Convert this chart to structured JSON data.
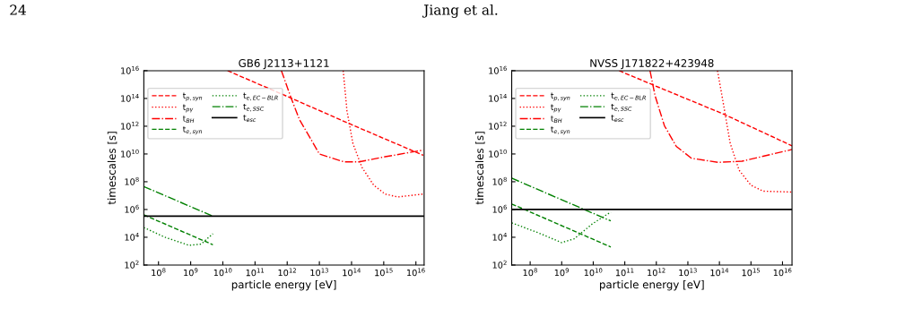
{
  "chart_data": [
    {
      "type": "line",
      "title": "GB6 J2113+1121",
      "xlabel": "particle energy [eV]",
      "ylabel": "timescales [s]",
      "log": "xy",
      "grid": false,
      "legend": "top left",
      "annotations": [
        "24",
        "Jiang et al."
      ],
      "xlim": [
        35000000.0,
        1.8e+16
      ],
      "ylim": [
        100.0,
        1e+16
      ],
      "xticks": [
        {
          "value": 100000000.0,
          "label": "10$^{8}$"
        },
        {
          "value": 1000000000.0,
          "label": "10$^{9}$"
        },
        {
          "value": 10000000000.0,
          "label": "10$^{10}$"
        },
        {
          "value": 100000000000.0,
          "label": "10$^{11}$"
        },
        {
          "value": 1000000000000.0,
          "label": "10$^{12}$"
        },
        {
          "value": 10000000000000.0,
          "label": "10$^{13}$"
        },
        {
          "value": 100000000000000.0,
          "label": "10$^{14}$"
        },
        {
          "value": 1000000000000000.0,
          "label": "10$^{15}$"
        },
        {
          "value": 1e+16,
          "label": "10$^{16}$"
        }
      ],
      "yticks": [
        {
          "value": 100.0,
          "label": "10$^{2}$"
        },
        {
          "value": 10000.0,
          "label": "10$^{4}$"
        },
        {
          "value": 1000000.0,
          "label": "10$^{6}$"
        },
        {
          "value": 100000000.0,
          "label": "10$^{8}$"
        },
        {
          "value": 10000000000.0,
          "label": "10$^{10}$"
        },
        {
          "value": 1000000000000.0,
          "label": "10$^{12}$"
        },
        {
          "value": 100000000000000.0,
          "label": "10$^{14}$"
        },
        {
          "value": 1e+16,
          "label": "10$^{16}$"
        }
      ],
      "series": [
        {
          "name": "t$_{p,syn}$",
          "color": "#ff0000",
          "line_style": "dashed",
          "x": [
            14000000000.0,
            1000000000000.0,
            100000000000000.0,
            1.7e+16
          ],
          "values": [
            1e+16,
            140000000000000.0,
            1300000000000.0,
            8000000000.0
          ]
        },
        {
          "name": "t$_{pγ}$",
          "color": "#ff0000",
          "line_style": "dotted",
          "x": [
            55000000000000.0,
            72000000000000.0,
            110000000000000.0,
            210000000000000.0,
            490000000000000.0,
            1100000000000000.0,
            2700000000000000.0,
            1.7e+16
          ],
          "values": [
            1e+16,
            13000000000000.0,
            58000000000.0,
            1100000000.0,
            56000000.0,
            13000000.0,
            8000000.0,
            13000000.0
          ]
        },
        {
          "name": "t$_{BH}$",
          "color": "#ff0000",
          "line_style": "dashdot",
          "x": [
            660000000000.0,
            1300000000000.0,
            2400000000000.0,
            4500000000000.0,
            10000000000000.0,
            58000000000000.0,
            170000000000000.0,
            1100000000000000.0,
            1.7e+16
          ],
          "values": [
            1e+16,
            120000000000000.0,
            3000000000000.0,
            250000000000.0,
            10000000000.0,
            2700000000.0,
            2700000000.0,
            6300000000.0,
            19000000000.0
          ]
        },
        {
          "name": "t$_{e,syn}$",
          "color": "#008000",
          "line_style": "dashed",
          "x": [
            35000000.0,
            4900000000.0
          ],
          "values": [
            410000.0,
            2900.0
          ]
        },
        {
          "name": "t$_{e,EC−BLR}$",
          "color": "#008000",
          "line_style": "dotted",
          "x": [
            35000000.0,
            160000000.0,
            890000000.0,
            2100000000.0,
            4900000000.0
          ],
          "values": [
            50000.0,
            10000.0,
            2600.0,
            3200.0,
            18000.0
          ]
        },
        {
          "name": "t$_{e,SSC}$",
          "color": "#008000",
          "line_style": "dashdot",
          "x": [
            35000000.0,
            4900000000.0
          ],
          "values": [
            45000000.0,
            330000.0
          ]
        },
        {
          "name": "t$_{esc}$",
          "color": "#000000",
          "line_style": "solid",
          "x": [
            35000000.0,
            1.8e+16
          ],
          "values": [
            330000.0,
            330000.0
          ]
        }
      ]
    },
    {
      "type": "line",
      "title": "NVSS J171822+423948",
      "xlabel": "particle energy [eV]",
      "ylabel": "timescales [s]",
      "log": "xy",
      "grid": false,
      "legend": "top left",
      "xlim": [
        26000000.0,
        2e+16
      ],
      "ylim": [
        100.0,
        1e+16
      ],
      "xticks": [
        {
          "value": 100000000.0,
          "label": "10$^{8}$"
        },
        {
          "value": 1000000000.0,
          "label": "10$^{9}$"
        },
        {
          "value": 10000000000.0,
          "label": "10$^{10}$"
        },
        {
          "value": 100000000000.0,
          "label": "10$^{11}$"
        },
        {
          "value": 1000000000000.0,
          "label": "10$^{12}$"
        },
        {
          "value": 10000000000000.0,
          "label": "10$^{13}$"
        },
        {
          "value": 100000000000000.0,
          "label": "10$^{14}$"
        },
        {
          "value": 1000000000000000.0,
          "label": "10$^{15}$"
        },
        {
          "value": 1e+16,
          "label": "10$^{16}$"
        }
      ],
      "yticks": [
        {
          "value": 100.0,
          "label": "10$^{2}$"
        },
        {
          "value": 10000.0,
          "label": "10$^{4}$"
        },
        {
          "value": 1000000.0,
          "label": "10$^{6}$"
        },
        {
          "value": 100000000.0,
          "label": "10$^{8}$"
        },
        {
          "value": 10000000000.0,
          "label": "10$^{10}$"
        },
        {
          "value": 1000000000000.0,
          "label": "10$^{12}$"
        },
        {
          "value": 100000000000000.0,
          "label": "10$^{14}$"
        },
        {
          "value": 1e+16,
          "label": "10$^{16}$"
        }
      ],
      "series": [
        {
          "name": "t$_{p,syn}$",
          "color": "#ff0000",
          "line_style": "dashed",
          "x": [
            66000000000.0,
            740000000000.0,
            140000000000000.0,
            2e+16
          ],
          "values": [
            1e+16,
            1000000000000000.0,
            7200000000000.0,
            39000000000.0
          ]
        },
        {
          "name": "t$_{pγ}$",
          "color": "#ff0000",
          "line_style": "dotted",
          "x": [
            87000000000000.0,
            130000000000000.0,
            220000000000000.0,
            420000000000000.0,
            1000000000000000.0,
            2400000000000000.0,
            2e+16
          ],
          "values": [
            1e+16,
            59000000000000.0,
            58000000000.0,
            680000000.0,
            56000000.0,
            21000000.0,
            18000000.0
          ]
        },
        {
          "name": "t$_{BH}$",
          "color": "#ff0000",
          "line_style": "dashdot",
          "x": [
            630000000000.0,
            910000000000.0,
            1800000000000.0,
            4300000000000.0,
            13000000000000.0,
            91000000000000.0,
            520000000000000.0,
            2e+16
          ],
          "values": [
            1e+16,
            160000000000000.0,
            1100000000000.0,
            35000000000.0,
            4900000000.0,
            2500000000.0,
            3000000000.0,
            21000000000.0
          ]
        },
        {
          "name": "t$_{e,syn}$",
          "color": "#008000",
          "line_style": "dashed",
          "x": [
            26000000.0,
            36000000000.0
          ],
          "values": [
            2500000.0,
            2000.0
          ]
        },
        {
          "name": "t$_{e,EC−BLR}$",
          "color": "#008000",
          "line_style": "dotted",
          "x": [
            26000000.0,
            180000000.0,
            1000000000.0,
            2500000000.0,
            9300000000.0,
            36000000000.0
          ],
          "values": [
            110000.0,
            21000.0,
            4100.0,
            7800.0,
            91000.0,
            660000.0
          ]
        },
        {
          "name": "t$_{e,SSC}$",
          "color": "#008000",
          "line_style": "dashdot",
          "x": [
            26000000.0,
            36000000000.0
          ],
          "values": [
            180000000.0,
            150000.0
          ]
        },
        {
          "name": "t$_{esc}$",
          "color": "#000000",
          "line_style": "solid",
          "x": [
            26000000.0,
            2e+16
          ],
          "values": [
            1000000.0,
            1000000.0
          ]
        }
      ]
    }
  ]
}
